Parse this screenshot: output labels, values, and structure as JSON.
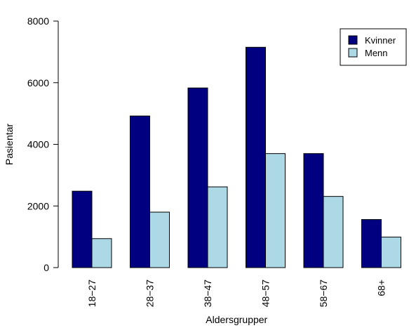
{
  "chart_data": {
    "type": "bar",
    "title": "",
    "xlabel": "Aldersgrupper",
    "ylabel": "Pasientar",
    "categories": [
      "18−27",
      "28−37",
      "38−47",
      "48−57",
      "58−67",
      "68+"
    ],
    "series": [
      {
        "name": "Kvinner",
        "color": "#000080",
        "values": [
          2480,
          4920,
          5830,
          7150,
          3700,
          1560
        ]
      },
      {
        "name": "Menn",
        "color": "#ADD8E6",
        "values": [
          940,
          1800,
          2620,
          3700,
          2310,
          990
        ]
      }
    ],
    "ylim": [
      0,
      8000
    ],
    "yticks": [
      0,
      2000,
      4000,
      6000,
      8000
    ],
    "grid": false,
    "legend_position": "top-right"
  }
}
